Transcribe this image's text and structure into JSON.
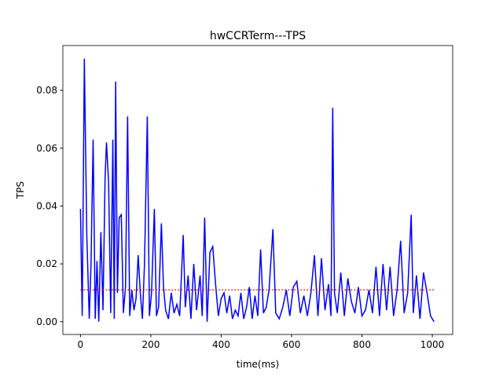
{
  "chart_data": {
    "type": "line",
    "title": "hwCCRTerm---TPS",
    "x_label": "time(ms)",
    "y_label": "TPS",
    "x": [
      0,
      5,
      11,
      18,
      25,
      30,
      36,
      42,
      47,
      52,
      58,
      64,
      70,
      74,
      80,
      86,
      92,
      96,
      100,
      105,
      110,
      116,
      122,
      128,
      134,
      140,
      146,
      152,
      158,
      164,
      170,
      176,
      182,
      190,
      196,
      202,
      210,
      216,
      222,
      230,
      236,
      242,
      250,
      258,
      266,
      274,
      282,
      292,
      298,
      306,
      314,
      322,
      330,
      340,
      346,
      353,
      360,
      368,
      376,
      384,
      392,
      400,
      408,
      416,
      424,
      432,
      440,
      448,
      456,
      464,
      472,
      480,
      488,
      496,
      504,
      512,
      520,
      528,
      536,
      547,
      555,
      565,
      575,
      585,
      595,
      605,
      615,
      625,
      635,
      645,
      655,
      665,
      675,
      685,
      695,
      705,
      712,
      717,
      722,
      730,
      740,
      750,
      760,
      770,
      780,
      790,
      800,
      810,
      820,
      830,
      840,
      850,
      860,
      870,
      880,
      890,
      900,
      910,
      920,
      930,
      940,
      946,
      955,
      965,
      975,
      985,
      995,
      1005
    ],
    "series": [
      {
        "color": "#0000ff",
        "style": "solid",
        "values": [
          0.039,
          0.002,
          0.091,
          0.03,
          0.001,
          0.02,
          0.063,
          0.001,
          0.021,
          0.0,
          0.031,
          0.004,
          0.05,
          0.062,
          0.048,
          0.003,
          0.063,
          0.001,
          0.083,
          0.01,
          0.036,
          0.037,
          0.003,
          0.012,
          0.071,
          0.002,
          0.011,
          0.004,
          0.008,
          0.023,
          0.01,
          0.001,
          0.02,
          0.071,
          0.002,
          0.01,
          0.039,
          0.002,
          0.005,
          0.034,
          0.012,
          0.004,
          0.001,
          0.01,
          0.003,
          0.006,
          0.002,
          0.03,
          0.005,
          0.016,
          0.001,
          0.02,
          0.004,
          0.016,
          0.002,
          0.036,
          0.0,
          0.024,
          0.026,
          0.013,
          0.002,
          0.008,
          0.01,
          0.003,
          0.009,
          0.001,
          0.004,
          0.002,
          0.01,
          0.001,
          0.005,
          0.012,
          0.001,
          0.009,
          0.002,
          0.025,
          0.003,
          0.005,
          0.011,
          0.032,
          0.003,
          0.001,
          0.005,
          0.011,
          0.002,
          0.012,
          0.014,
          0.003,
          0.009,
          0.002,
          0.01,
          0.023,
          0.002,
          0.022,
          0.004,
          0.013,
          0.002,
          0.074,
          0.01,
          0.003,
          0.017,
          0.002,
          0.015,
          0.007,
          0.003,
          0.012,
          0.002,
          0.004,
          0.011,
          0.003,
          0.019,
          0.002,
          0.02,
          0.004,
          0.019,
          0.002,
          0.011,
          0.028,
          0.003,
          0.01,
          0.037,
          0.003,
          0.016,
          0.001,
          0.017,
          0.01,
          0.002,
          0.0
        ]
      },
      {
        "color": "#ff0000",
        "style": "dotted",
        "x": [
          0,
          1005
        ],
        "values": [
          0.011,
          0.011
        ]
      }
    ],
    "xlim": [
      -50,
      1058
    ],
    "ylim": [
      -0.0044,
      0.0955
    ],
    "xticks": [
      0,
      200,
      400,
      600,
      800,
      1000
    ],
    "yticks": [
      {
        "value": 0,
        "label": "0.00"
      },
      0.02,
      0.04,
      0.06,
      0.08
    ]
  }
}
